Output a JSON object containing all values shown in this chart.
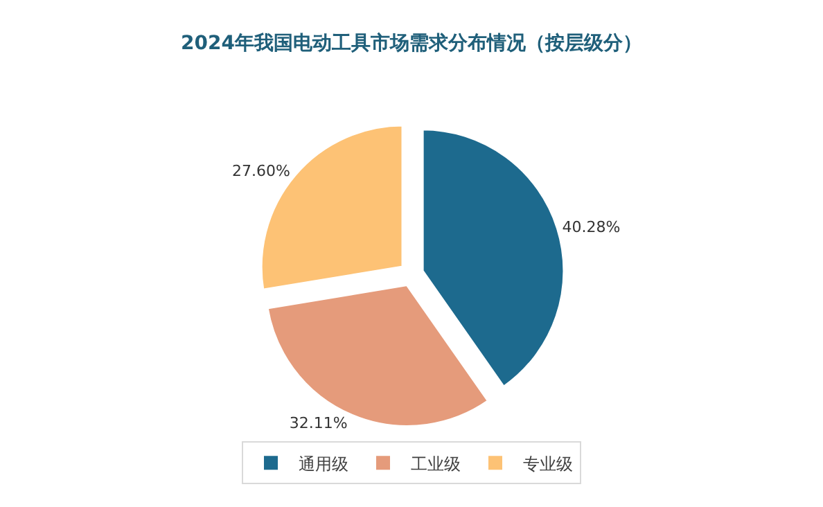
{
  "chart_data": {
    "type": "pie",
    "title": "2024年我国电动工具市场需求分布情况（按层级分）",
    "categories": [
      "通用级",
      "工业级",
      "专业级"
    ],
    "values": [
      40.28,
      32.11,
      27.6
    ],
    "value_labels": [
      "40.28%",
      "32.11%",
      "27.60%"
    ],
    "colors": [
      "#1d6a8e",
      "#e59b7b",
      "#fdc275"
    ],
    "legend": "bottom"
  }
}
